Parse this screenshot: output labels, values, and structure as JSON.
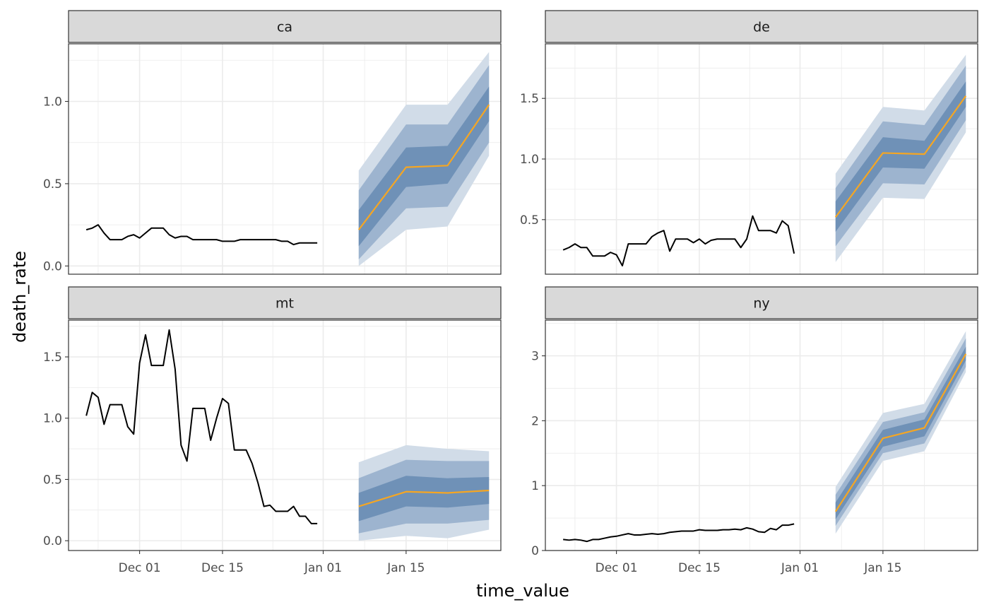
{
  "chart_data": {
    "type": "line",
    "xlabel": "time_value",
    "ylabel": "death_rate",
    "x_tick_labels": [
      "Dec 01",
      "Dec 15",
      "Jan 01",
      "Jan 15"
    ],
    "x_tick_dates": [
      "2021-12-01",
      "2021-12-15",
      "2022-01-01",
      "2022-01-15"
    ],
    "xlim": [
      "2021-11-19",
      "2022-01-31"
    ],
    "grid": true,
    "facets": [
      "ca",
      "de",
      "mt",
      "ny"
    ],
    "colors": {
      "observed": "#000000",
      "forecast_median": "#f5a623",
      "band_outer": "#d1dce8",
      "band_mid": "#9db4cf",
      "band_inner": "#6f91b7",
      "strip_fill": "#d9d9d9",
      "grid": "#ebebeb",
      "panel_border": "#333333"
    },
    "panels": [
      {
        "label": "ca",
        "ylim": [
          -0.05,
          1.35
        ],
        "y_ticks": [
          0.0,
          0.5,
          1.0
        ],
        "y_tick_labels": [
          "0.0",
          "0.5",
          "1.0"
        ],
        "observed": {
          "x": [
            "2021-11-22",
            "2021-11-23",
            "2021-11-24",
            "2021-11-25",
            "2021-11-26",
            "2021-11-27",
            "2021-11-28",
            "2021-11-29",
            "2021-11-30",
            "2021-12-01",
            "2021-12-02",
            "2021-12-03",
            "2021-12-04",
            "2021-12-05",
            "2021-12-06",
            "2021-12-07",
            "2021-12-08",
            "2021-12-09",
            "2021-12-10",
            "2021-12-11",
            "2021-12-12",
            "2021-12-13",
            "2021-12-14",
            "2021-12-15",
            "2021-12-16",
            "2021-12-17",
            "2021-12-18",
            "2021-12-19",
            "2021-12-20",
            "2021-12-21",
            "2021-12-22",
            "2021-12-23",
            "2021-12-24",
            "2021-12-25",
            "2021-12-26",
            "2021-12-27",
            "2021-12-28",
            "2021-12-29",
            "2021-12-30",
            "2021-12-31"
          ],
          "y": [
            0.22,
            0.23,
            0.25,
            0.2,
            0.16,
            0.16,
            0.16,
            0.18,
            0.19,
            0.17,
            0.2,
            0.23,
            0.23,
            0.23,
            0.19,
            0.17,
            0.18,
            0.18,
            0.16,
            0.16,
            0.16,
            0.16,
            0.16,
            0.15,
            0.15,
            0.15,
            0.16,
            0.16,
            0.16,
            0.16,
            0.16,
            0.16,
            0.16,
            0.15,
            0.15,
            0.13,
            0.14,
            0.14,
            0.14,
            0.14
          ]
        },
        "forecast": {
          "x": [
            "2022-01-07",
            "2022-01-15",
            "2022-01-22",
            "2022-01-29"
          ],
          "median": [
            0.22,
            0.6,
            0.61,
            0.98
          ],
          "band_outer": [
            [
              0.0,
              0.58
            ],
            [
              0.22,
              0.98
            ],
            [
              0.24,
              0.98
            ],
            [
              0.67,
              1.3
            ]
          ],
          "band_mid": [
            [
              0.04,
              0.46
            ],
            [
              0.35,
              0.86
            ],
            [
              0.36,
              0.86
            ],
            [
              0.75,
              1.22
            ]
          ],
          "band_inner": [
            [
              0.12,
              0.34
            ],
            [
              0.48,
              0.72
            ],
            [
              0.5,
              0.73
            ],
            [
              0.88,
              1.09
            ]
          ]
        }
      },
      {
        "label": "de",
        "ylim": [
          0.05,
          1.95
        ],
        "y_ticks": [
          0.5,
          1.0,
          1.5
        ],
        "y_tick_labels": [
          "0.5",
          "1.0",
          "1.5"
        ],
        "observed": {
          "x": [
            "2021-11-22",
            "2021-11-23",
            "2021-11-24",
            "2021-11-25",
            "2021-11-26",
            "2021-11-27",
            "2021-11-28",
            "2021-11-29",
            "2021-11-30",
            "2021-12-01",
            "2021-12-02",
            "2021-12-03",
            "2021-12-04",
            "2021-12-05",
            "2021-12-06",
            "2021-12-07",
            "2021-12-08",
            "2021-12-09",
            "2021-12-10",
            "2021-12-11",
            "2021-12-12",
            "2021-12-13",
            "2021-12-14",
            "2021-12-15",
            "2021-12-16",
            "2021-12-17",
            "2021-12-18",
            "2021-12-19",
            "2021-12-20",
            "2021-12-21",
            "2021-12-22",
            "2021-12-23",
            "2021-12-24",
            "2021-12-25",
            "2021-12-26",
            "2021-12-27",
            "2021-12-28",
            "2021-12-29",
            "2021-12-30",
            "2021-12-31"
          ],
          "y": [
            0.25,
            0.27,
            0.3,
            0.27,
            0.27,
            0.2,
            0.2,
            0.2,
            0.23,
            0.21,
            0.12,
            0.3,
            0.3,
            0.3,
            0.3,
            0.36,
            0.39,
            0.41,
            0.24,
            0.34,
            0.34,
            0.34,
            0.31,
            0.34,
            0.3,
            0.33,
            0.34,
            0.34,
            0.34,
            0.34,
            0.27,
            0.34,
            0.53,
            0.41,
            0.41,
            0.41,
            0.39,
            0.49,
            0.45,
            0.22
          ]
        },
        "forecast": {
          "x": [
            "2022-01-07",
            "2022-01-15",
            "2022-01-22",
            "2022-01-29"
          ],
          "median": [
            0.52,
            1.05,
            1.04,
            1.52
          ],
          "band_outer": [
            [
              0.15,
              0.88
            ],
            [
              0.68,
              1.43
            ],
            [
              0.67,
              1.4
            ],
            [
              1.22,
              1.86
            ]
          ],
          "band_mid": [
            [
              0.28,
              0.76
            ],
            [
              0.8,
              1.31
            ],
            [
              0.79,
              1.28
            ],
            [
              1.32,
              1.77
            ]
          ],
          "band_inner": [
            [
              0.4,
              0.65
            ],
            [
              0.93,
              1.18
            ],
            [
              0.92,
              1.15
            ],
            [
              1.43,
              1.64
            ]
          ]
        }
      },
      {
        "label": "mt",
        "ylim": [
          -0.08,
          1.8
        ],
        "y_ticks": [
          0.0,
          0.5,
          1.0,
          1.5
        ],
        "y_tick_labels": [
          "0.0",
          "0.5",
          "1.0",
          "1.5"
        ],
        "observed": {
          "x": [
            "2021-11-22",
            "2021-11-23",
            "2021-11-24",
            "2021-11-25",
            "2021-11-26",
            "2021-11-27",
            "2021-11-28",
            "2021-11-29",
            "2021-11-30",
            "2021-12-01",
            "2021-12-02",
            "2021-12-03",
            "2021-12-04",
            "2021-12-05",
            "2021-12-06",
            "2021-12-07",
            "2021-12-08",
            "2021-12-09",
            "2021-12-10",
            "2021-12-11",
            "2021-12-12",
            "2021-12-13",
            "2021-12-14",
            "2021-12-15",
            "2021-12-16",
            "2021-12-17",
            "2021-12-18",
            "2021-12-19",
            "2021-12-20",
            "2021-12-21",
            "2021-12-22",
            "2021-12-23",
            "2021-12-24",
            "2021-12-25",
            "2021-12-26",
            "2021-12-27",
            "2021-12-28",
            "2021-12-29",
            "2021-12-30",
            "2021-12-31"
          ],
          "y": [
            1.02,
            1.21,
            1.17,
            0.95,
            1.11,
            1.11,
            1.11,
            0.93,
            0.87,
            1.45,
            1.68,
            1.43,
            1.43,
            1.43,
            1.72,
            1.4,
            0.78,
            0.65,
            1.08,
            1.08,
            1.08,
            0.82,
            1.0,
            1.16,
            1.12,
            0.74,
            0.74,
            0.74,
            0.63,
            0.47,
            0.28,
            0.29,
            0.24,
            0.24,
            0.24,
            0.28,
            0.2,
            0.2,
            0.14,
            0.14
          ]
        },
        "forecast": {
          "x": [
            "2022-01-07",
            "2022-01-15",
            "2022-01-22",
            "2022-01-29"
          ],
          "median": [
            0.28,
            0.4,
            0.39,
            0.41
          ],
          "band_outer": [
            [
              0.0,
              0.64
            ],
            [
              0.04,
              0.78
            ],
            [
              0.02,
              0.75
            ],
            [
              0.09,
              0.73
            ]
          ],
          "band_mid": [
            [
              0.06,
              0.51
            ],
            [
              0.14,
              0.66
            ],
            [
              0.14,
              0.65
            ],
            [
              0.17,
              0.65
            ]
          ],
          "band_inner": [
            [
              0.16,
              0.39
            ],
            [
              0.28,
              0.53
            ],
            [
              0.27,
              0.51
            ],
            [
              0.3,
              0.52
            ]
          ]
        }
      },
      {
        "label": "ny",
        "ylim": [
          0.0,
          3.55
        ],
        "y_ticks": [
          0,
          1,
          2,
          3
        ],
        "y_tick_labels": [
          "0",
          "1",
          "2",
          "3"
        ],
        "observed": {
          "x": [
            "2021-11-22",
            "2021-11-23",
            "2021-11-24",
            "2021-11-25",
            "2021-11-26",
            "2021-11-27",
            "2021-11-28",
            "2021-11-29",
            "2021-11-30",
            "2021-12-01",
            "2021-12-02",
            "2021-12-03",
            "2021-12-04",
            "2021-12-05",
            "2021-12-06",
            "2021-12-07",
            "2021-12-08",
            "2021-12-09",
            "2021-12-10",
            "2021-12-11",
            "2021-12-12",
            "2021-12-13",
            "2021-12-14",
            "2021-12-15",
            "2021-12-16",
            "2021-12-17",
            "2021-12-18",
            "2021-12-19",
            "2021-12-20",
            "2021-12-21",
            "2021-12-22",
            "2021-12-23",
            "2021-12-24",
            "2021-12-25",
            "2021-12-26",
            "2021-12-27",
            "2021-12-28",
            "2021-12-29",
            "2021-12-30",
            "2021-12-31"
          ],
          "y": [
            0.17,
            0.16,
            0.17,
            0.16,
            0.14,
            0.17,
            0.17,
            0.19,
            0.21,
            0.22,
            0.24,
            0.26,
            0.24,
            0.24,
            0.25,
            0.26,
            0.25,
            0.26,
            0.28,
            0.29,
            0.3,
            0.3,
            0.3,
            0.32,
            0.31,
            0.31,
            0.31,
            0.32,
            0.32,
            0.33,
            0.32,
            0.35,
            0.33,
            0.29,
            0.28,
            0.34,
            0.32,
            0.39,
            0.39,
            0.41
          ]
        },
        "forecast": {
          "x": [
            "2022-01-07",
            "2022-01-15",
            "2022-01-22",
            "2022-01-29"
          ],
          "median": [
            0.6,
            1.73,
            1.89,
            3.03
          ],
          "band_outer": [
            [
              0.26,
              0.98
            ],
            [
              1.38,
              2.12
            ],
            [
              1.53,
              2.26
            ],
            [
              2.75,
              3.38
            ]
          ],
          "band_mid": [
            [
              0.38,
              0.86
            ],
            [
              1.5,
              1.98
            ],
            [
              1.65,
              2.13
            ],
            [
              2.83,
              3.27
            ]
          ],
          "band_inner": [
            [
              0.48,
              0.74
            ],
            [
              1.6,
              1.86
            ],
            [
              1.76,
              2.02
            ],
            [
              2.93,
              3.14
            ]
          ]
        }
      }
    ]
  }
}
